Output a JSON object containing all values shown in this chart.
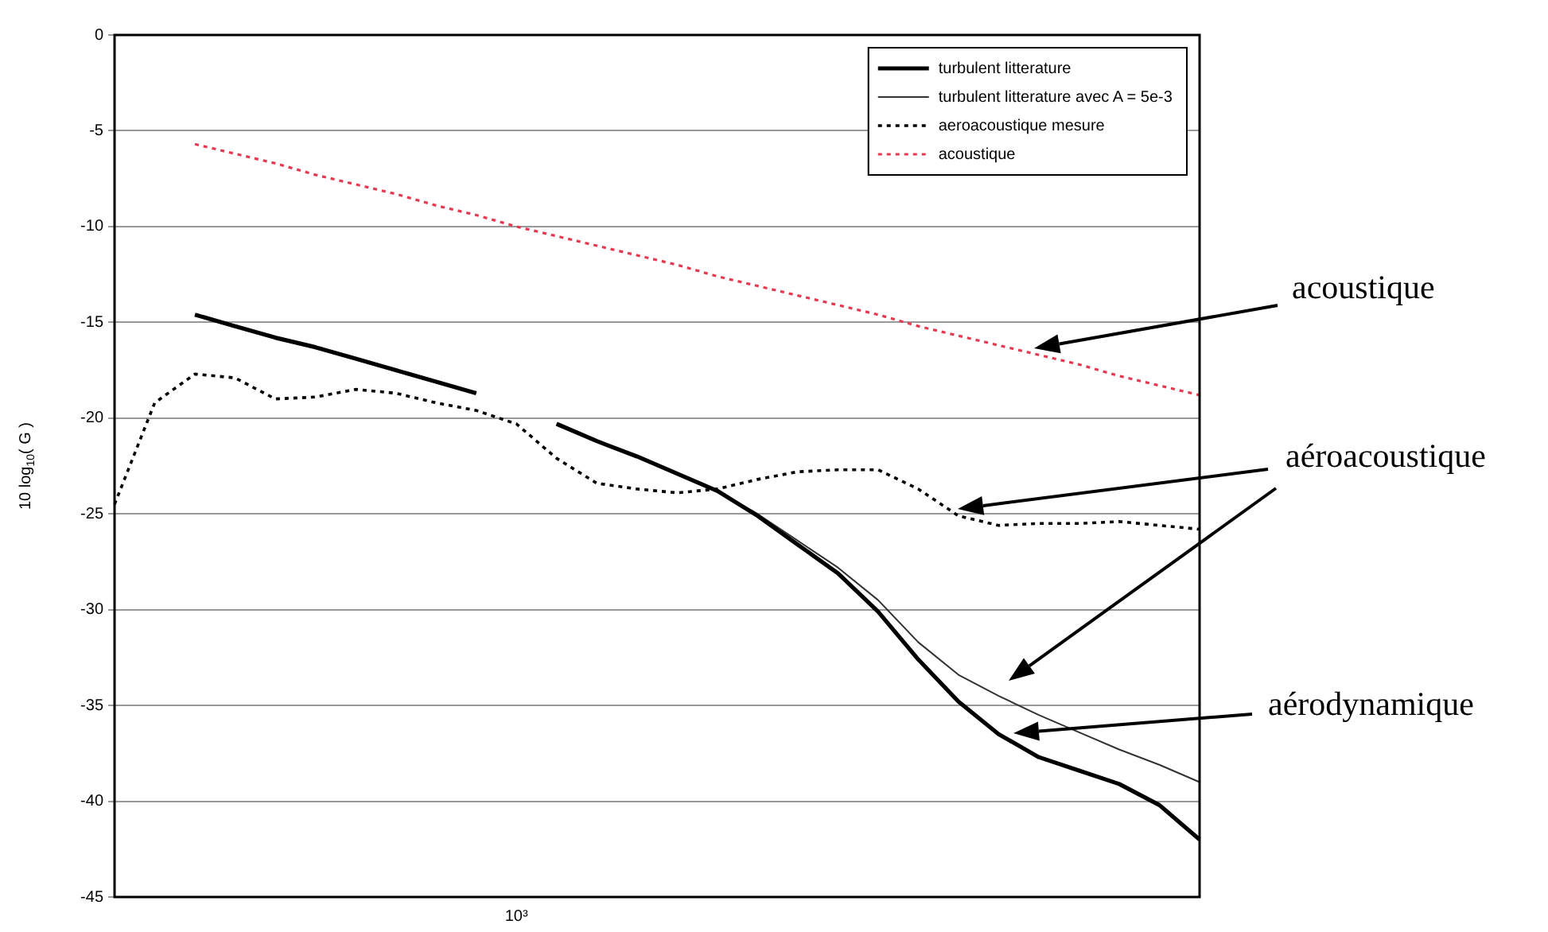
{
  "chart_data": {
    "type": "line",
    "ylabel": "10 log$_{10}$( G )",
    "grid": "y",
    "legend": "top right",
    "categories": [
      null,
      null,
      null,
      null,
      null,
      null,
      null,
      null,
      null,
      null,
      "10³",
      null,
      null,
      null,
      null,
      null,
      null,
      null,
      null,
      null,
      null,
      null,
      null,
      null,
      null,
      null,
      null,
      null
    ],
    "ylim": [
      -45,
      0
    ],
    "yticks": [
      {
        "value": -45,
        "label": "-45"
      },
      {
        "value": -40,
        "label": "-40"
      },
      {
        "value": -35,
        "label": "-35"
      },
      {
        "value": -30,
        "label": "-30"
      },
      {
        "value": -25,
        "label": "-25"
      },
      {
        "value": -20,
        "label": "-20"
      },
      {
        "value": -15,
        "label": "-15"
      },
      {
        "value": -10,
        "label": "-10"
      },
      {
        "value": -5,
        "label": "-5"
      },
      {
        "value": 0,
        "label": "0"
      }
    ],
    "series": [
      {
        "name": "turbulent litterature",
        "color": "#000000",
        "line_style": "solid",
        "values": [
          null,
          null,
          -14.6,
          -15.2,
          -15.8,
          -16.3,
          -16.9,
          -17.5,
          -18.1,
          -18.7,
          null,
          -20.3,
          -21.2,
          -22.0,
          -22.9,
          -23.8,
          -25.1,
          -26.6,
          -28.1,
          -30.1,
          -32.6,
          -34.8,
          -36.5,
          -37.7,
          -38.4,
          -39.1,
          -40.2,
          -42.0
        ]
      },
      {
        "name": "turbulent litterature avec A = 5e-3",
        "color": "#333333",
        "line_style": "solid",
        "values": [
          null,
          null,
          -14.6,
          -15.2,
          -15.8,
          -16.3,
          -16.9,
          -17.5,
          -18.1,
          -18.7,
          null,
          -20.3,
          -21.2,
          -22.0,
          -22.9,
          -23.8,
          -25.0,
          -26.4,
          -27.8,
          -29.5,
          -31.7,
          -33.4,
          -34.5,
          -35.5,
          -36.4,
          -37.3,
          -38.1,
          -39.0
        ]
      },
      {
        "name": "aeroacoustique mesure",
        "color": "#000000",
        "line_style": "dotted",
        "values": [
          -24.5,
          -19.2,
          -17.7,
          -17.9,
          -19.0,
          -18.9,
          -18.5,
          -18.7,
          -19.2,
          -19.6,
          -20.3,
          -22.1,
          -23.4,
          -23.7,
          -23.9,
          -23.7,
          -23.2,
          -22.8,
          -22.7,
          -22.7,
          -23.7,
          -25.1,
          -25.6,
          -25.5,
          -25.5,
          -25.4,
          -25.6,
          -25.8
        ]
      },
      {
        "name": "acoustique",
        "color": "#e8384f",
        "line_style": "dotted",
        "values": [
          null,
          null,
          -5.7,
          -6.2,
          -6.7,
          -7.3,
          -7.8,
          -8.3,
          -8.9,
          -9.4,
          -10.0,
          -10.5,
          -11.0,
          -11.5,
          -12.0,
          -12.6,
          -13.1,
          -13.6,
          -14.1,
          -14.6,
          -15.2,
          -15.7,
          -16.2,
          -16.7,
          -17.2,
          -17.8,
          -18.3,
          -18.8
        ]
      }
    ],
    "annotations": [
      "acoustique",
      "aéroacoustique",
      "aérodynamique"
    ]
  }
}
